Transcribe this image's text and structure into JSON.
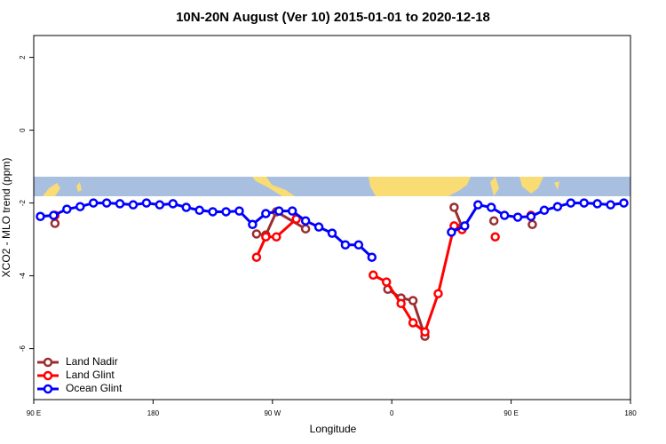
{
  "chart_data": {
    "type": "line",
    "title": "10N-20N August (Ver 10)   2015-01-01 to 2020-12-18",
    "x_label": "Longitude",
    "y_label": "XCO2 - MLO trend (ppm)",
    "xlim": [
      90,
      540
    ],
    "ylim": [
      -7.4,
      2.6
    ],
    "xticks": [
      {
        "value": 90,
        "label": "90 E"
      },
      180,
      {
        "value": 270,
        "label": "90 W"
      },
      {
        "value": 360,
        "label": "0"
      },
      {
        "value": 450,
        "label": "90 E"
      },
      {
        "value": 540,
        "label": "180"
      }
    ],
    "yticks": [
      2,
      0,
      -2,
      -4,
      -6
    ],
    "legend": "bottom-left",
    "series": [
      {
        "name": "Land Nadir",
        "color": "#9b2d30",
        "x": [
          106,
          200,
          258,
          265,
          273,
          295,
          330,
          357,
          367,
          376,
          385,
          395,
          407,
          413,
          425,
          437,
          450,
          466
        ],
        "values": [
          -2.56,
          null,
          -2.85,
          -2.88,
          -2.24,
          -2.71,
          null,
          -4.37,
          -4.61,
          -4.68,
          -5.66,
          null,
          -2.12,
          -2.66,
          null,
          -2.49,
          null,
          -2.59
        ]
      },
      {
        "name": "Land Glint",
        "color": "#ff0000",
        "x": [
          106,
          200,
          258,
          265,
          273,
          288,
          320,
          346,
          356,
          367,
          376,
          385,
          395,
          407,
          413,
          425,
          438,
          450,
          465
        ],
        "values": [
          -2.34,
          null,
          -3.49,
          -2.93,
          -2.93,
          -2.44,
          null,
          -3.98,
          -4.17,
          -4.76,
          -5.29,
          -5.54,
          -4.49,
          -2.63,
          -2.73,
          null,
          -2.93,
          null,
          -2.34
        ]
      },
      {
        "name": "Ocean Glint",
        "color": "#0000ff",
        "x": [
          95,
          105,
          115,
          125,
          135,
          145,
          155,
          165,
          175,
          185,
          195,
          205,
          215,
          225,
          235,
          245,
          255,
          265,
          275,
          285,
          295,
          305,
          315,
          325,
          335,
          345,
          375,
          405,
          415,
          425,
          435,
          445,
          455,
          465,
          475,
          485,
          495,
          505,
          515,
          525,
          535
        ],
        "values": [
          -2.37,
          -2.34,
          -2.17,
          -2.1,
          -2.0,
          -2.0,
          -2.02,
          -2.05,
          -2.0,
          -2.05,
          -2.02,
          -2.12,
          -2.2,
          -2.24,
          -2.24,
          -2.22,
          -2.59,
          -2.29,
          -2.22,
          -2.22,
          -2.49,
          -2.66,
          -2.83,
          -3.15,
          -3.15,
          -3.49,
          null,
          -2.8,
          -2.63,
          -2.05,
          -2.12,
          -2.34,
          -2.39,
          -2.37,
          -2.2,
          -2.1,
          -2.0,
          -2.0,
          -2.02,
          -2.05,
          -2.0
        ]
      }
    ]
  }
}
